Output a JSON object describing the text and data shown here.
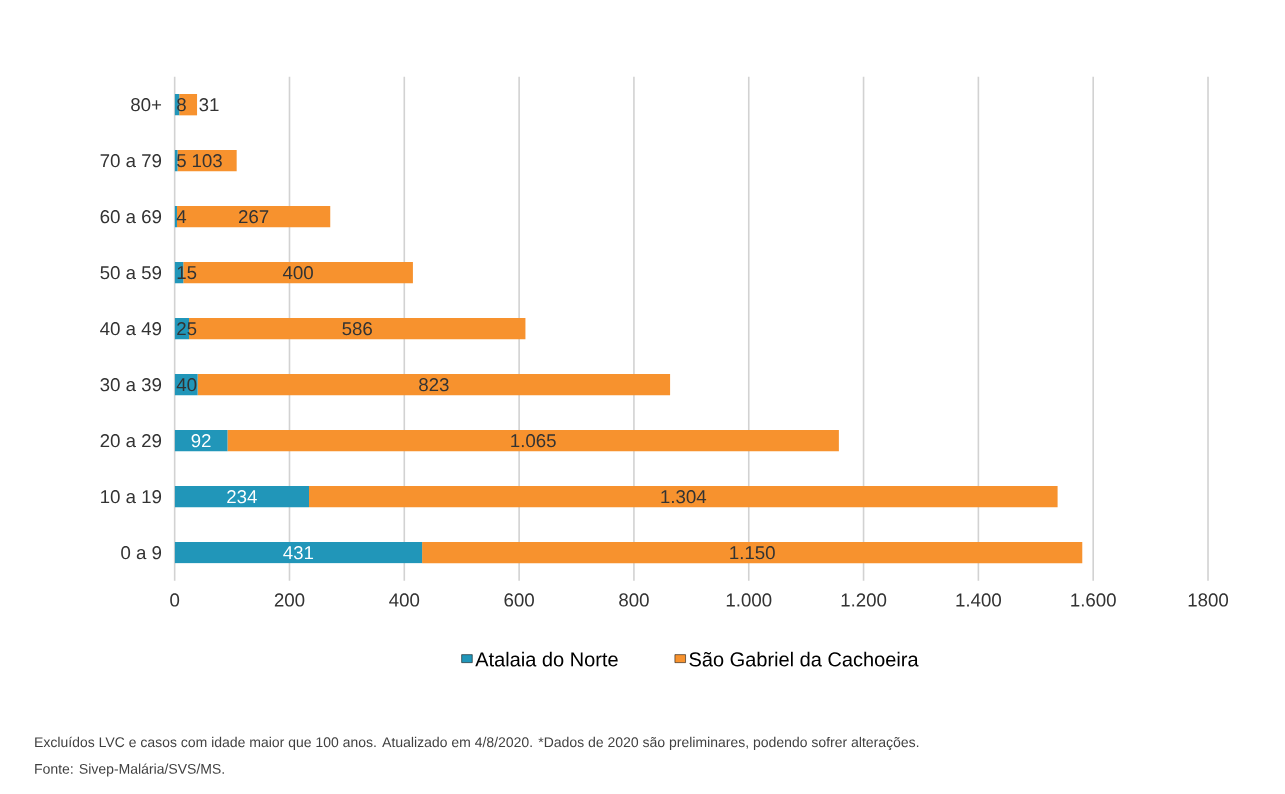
{
  "chart_data": {
    "type": "bar",
    "orientation": "horizontal",
    "stacked": true,
    "categories": [
      "80+",
      "70 a 79",
      "60 a 69",
      "50 a 59",
      "40 a 49",
      "30 a 39",
      "20 a 29",
      "10 a 19",
      "0 a 9"
    ],
    "series": [
      {
        "name": "Atalaia do Norte",
        "color": "#2196b9",
        "values": [
          8,
          5,
          4,
          15,
          25,
          40,
          92,
          234,
          431
        ],
        "value_labels": [
          "8",
          "5",
          "4",
          "15",
          "25",
          "40",
          "92",
          "234",
          "431"
        ]
      },
      {
        "name": "São Gabriel da Cachoeira",
        "color": "#f7922e",
        "values": [
          31,
          103,
          267,
          400,
          586,
          823,
          1065,
          1304,
          1150
        ],
        "value_labels": [
          "31",
          "103",
          "267",
          "400",
          "586",
          "823",
          "1.065",
          "1.304",
          "1.150"
        ]
      }
    ],
    "xlim": [
      0,
      1800
    ],
    "xticks": [
      0,
      200,
      400,
      600,
      800,
      {
        "value": 1000,
        "label": "1.000"
      },
      {
        "value": 1200,
        "label": "1.200"
      },
      {
        "value": 1400,
        "label": "1.400"
      },
      {
        "value": 1600,
        "label": "1.600"
      },
      1800
    ],
    "grid": "x",
    "legend": "bottom",
    "annotations": [
      "Excluídos LVC e casos com idade maior que 100 anos. Atualizado em 4/8/2020. *Dados de 2020 são preliminares, podendo sofrer alterações.",
      "Fonte: Sivep-Malária/SVS/MS."
    ]
  }
}
